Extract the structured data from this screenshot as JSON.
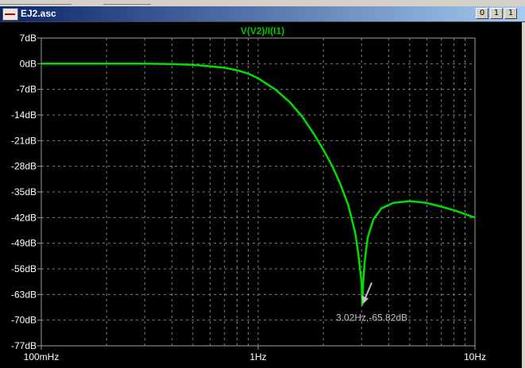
{
  "window": {
    "title": "EJ2.asc",
    "buttons": [
      "0",
      "1",
      "1"
    ]
  },
  "plot": {
    "trace_name": "V(V2)/I(I1)",
    "cursor_label": "3.02Hz,-65.82dB"
  },
  "chart_data": {
    "type": "line",
    "xscale": "log",
    "xlim": [
      0.1,
      10
    ],
    "ylim": [
      -77,
      7
    ],
    "x_tick_labels": [
      "100mHz",
      "1Hz",
      "10Hz"
    ],
    "x_ticks": [
      0.1,
      1,
      10
    ],
    "y_tick_labels": [
      "7dB",
      "0dB",
      "-7dB",
      "-14dB",
      "-21dB",
      "-28dB",
      "-35dB",
      "-42dB",
      "-49dB",
      "-56dB",
      "-63dB",
      "-70dB",
      "-77dB"
    ],
    "y_ticks": [
      7,
      0,
      -7,
      -14,
      -21,
      -28,
      -35,
      -42,
      -49,
      -56,
      -63,
      -70,
      -77
    ],
    "grid": true,
    "series": [
      {
        "color": "#00e000",
        "x": [
          0.1,
          0.2,
          0.3,
          0.4,
          0.5,
          0.6,
          0.7,
          0.8,
          0.9,
          1.0,
          1.2,
          1.4,
          1.6,
          1.8,
          2.0,
          2.2,
          2.4,
          2.6,
          2.8,
          2.9,
          3.0,
          3.02,
          3.05,
          3.1,
          3.2,
          3.4,
          3.7,
          4.2,
          5.0,
          6.0,
          7.0,
          8.0,
          10.0
        ],
        "y": [
          0,
          0,
          0,
          -0.1,
          -0.3,
          -0.7,
          -1.1,
          -1.8,
          -2.7,
          -4.0,
          -7.0,
          -10.5,
          -14.5,
          -19.0,
          -23.5,
          -28.0,
          -33.0,
          -38.5,
          -46.0,
          -52.0,
          -60.0,
          -65.82,
          -60.0,
          -54.0,
          -47.5,
          -42.5,
          -39.5,
          -38.0,
          -37.5,
          -38.0,
          -39.0,
          -40.0,
          -42.0
        ]
      }
    ],
    "cursor": {
      "x": 3.02,
      "y": -65.82
    }
  }
}
